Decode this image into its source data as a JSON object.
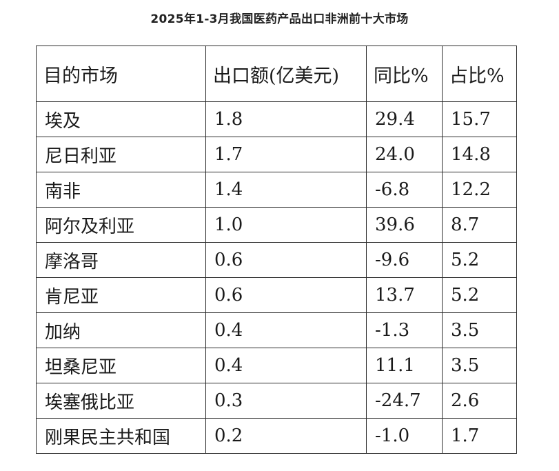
{
  "title": "2025年1-3月我国医药产品出口非洲前十大市场",
  "chart_data": {
    "type": "table",
    "title": "2025年1-3月我国医药产品出口非洲前十大市场",
    "columns": [
      "目的市场",
      "出口额(亿美元)",
      "同比%",
      "占比%"
    ],
    "rows": [
      [
        "埃及",
        "1.8",
        "29.4",
        "15.7"
      ],
      [
        "尼日利亚",
        "1.7",
        "24.0",
        "14.8"
      ],
      [
        "南非",
        "1.4",
        "-6.8",
        "12.2"
      ],
      [
        "阿尔及利亚",
        "1.0",
        "39.6",
        "8.7"
      ],
      [
        "摩洛哥",
        "0.6",
        "-9.6",
        "5.2"
      ],
      [
        "肯尼亚",
        "0.6",
        "13.7",
        "5.2"
      ],
      [
        "加纳",
        "0.4",
        "-1.3",
        "3.5"
      ],
      [
        "坦桑尼亚",
        "0.4",
        "11.1",
        "3.5"
      ],
      [
        "埃塞俄比亚",
        "0.3",
        "-24.7",
        "2.6"
      ],
      [
        "刚果民主共和国",
        "0.2",
        "-1.0",
        "1.7"
      ]
    ]
  }
}
